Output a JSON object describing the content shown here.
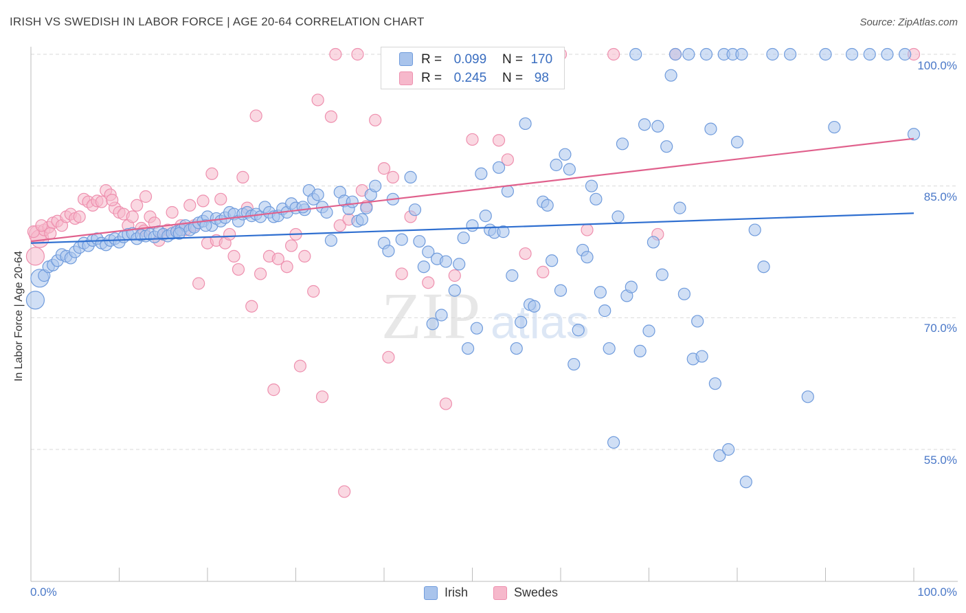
{
  "header": {
    "title": "IRISH VS SWEDISH IN LABOR FORCE | AGE 20-64 CORRELATION CHART",
    "source": "Source: ZipAtlas.com"
  },
  "legend": {
    "rows": [
      {
        "r_label": "R =",
        "r_value": "0.099",
        "n_label": "N =",
        "n_value": "170"
      },
      {
        "r_label": "R =",
        "r_value": "0.245",
        "n_label": "N =",
        "n_value": "98"
      }
    ],
    "bottom": [
      "Irish",
      "Swedes"
    ]
  },
  "colors": {
    "irish_fill": "#a9c4ec",
    "irish_stroke": "#6f9bdc",
    "irish_line": "#2f6fd0",
    "swedes_fill": "#f6b8cb",
    "swedes_stroke": "#ee8fae",
    "swedes_line": "#e0608c",
    "tick_text": "#4a78c8",
    "grid": "#d9d9d9"
  },
  "chart_data": {
    "type": "scatter",
    "title": "IRISH VS SWEDISH IN LABOR FORCE | AGE 20-64 CORRELATION CHART",
    "xlabel": "",
    "ylabel": "In Labor Force | Age 20-64",
    "xlim": [
      0,
      100
    ],
    "ylim": [
      40,
      101
    ],
    "y_ticks": [
      55,
      70,
      85,
      100
    ],
    "y_tick_labels": [
      "55.0%",
      "70.0%",
      "85.0%",
      "100.0%"
    ],
    "x_tick_labels": [
      "0.0%",
      "100.0%"
    ],
    "grid": true,
    "legend_position": "top-center",
    "watermark": "ZIPatlas",
    "series": [
      {
        "name": "Irish",
        "R": 0.099,
        "N": 170,
        "trend": [
          [
            0,
            78.5
          ],
          [
            100,
            81.9
          ]
        ],
        "points": [
          [
            0.5,
            72
          ],
          [
            1,
            74.5
          ],
          [
            1.5,
            74.8
          ],
          [
            2,
            75.8
          ],
          [
            2.5,
            76
          ],
          [
            3,
            76.5
          ],
          [
            3.5,
            77.2
          ],
          [
            4,
            77
          ],
          [
            4.5,
            76.8
          ],
          [
            5,
            77.5
          ],
          [
            5.5,
            78
          ],
          [
            6,
            78.5
          ],
          [
            6.5,
            78.2
          ],
          [
            7,
            78.8
          ],
          [
            7.5,
            79
          ],
          [
            8,
            78.5
          ],
          [
            8.5,
            78.3
          ],
          [
            9,
            78.8
          ],
          [
            9.5,
            79
          ],
          [
            10,
            78.6
          ],
          [
            10.5,
            79.2
          ],
          [
            11,
            79.5
          ],
          [
            11.5,
            79.6
          ],
          [
            12,
            79
          ],
          [
            12.5,
            79.4
          ],
          [
            13,
            79.3
          ],
          [
            13.5,
            79.5
          ],
          [
            14,
            79.2
          ],
          [
            14.5,
            79.8
          ],
          [
            15,
            79.5
          ],
          [
            15.5,
            79.3
          ],
          [
            16,
            79.6
          ],
          [
            16.5,
            79.8
          ],
          [
            17,
            80
          ],
          [
            17.5,
            80.5
          ],
          [
            18,
            80
          ],
          [
            18.5,
            80.3
          ],
          [
            19,
            80.8
          ],
          [
            19.5,
            81
          ],
          [
            20,
            81.5
          ],
          [
            20.5,
            80.5
          ],
          [
            21,
            81.3
          ],
          [
            21.5,
            81
          ],
          [
            22,
            81.4
          ],
          [
            22.5,
            82
          ],
          [
            23,
            81.8
          ],
          [
            23.5,
            81
          ],
          [
            24,
            81.8
          ],
          [
            24.5,
            82
          ],
          [
            25,
            81.6
          ],
          [
            25.5,
            81.8
          ],
          [
            26,
            81.5
          ],
          [
            26.5,
            82.6
          ],
          [
            27,
            82
          ],
          [
            27.5,
            81.5
          ],
          [
            28,
            81.6
          ],
          [
            28.5,
            82.4
          ],
          [
            29,
            82
          ],
          [
            29.5,
            83
          ],
          [
            30,
            82.5
          ],
          [
            31,
            82.3
          ],
          [
            31.5,
            84.5
          ],
          [
            32,
            83.5
          ],
          [
            32.5,
            84
          ],
          [
            33,
            82.6
          ],
          [
            33.5,
            82
          ],
          [
            34,
            78.8
          ],
          [
            35,
            84.3
          ],
          [
            35.5,
            83.3
          ],
          [
            36,
            82.4
          ],
          [
            37,
            81
          ],
          [
            37.5,
            81.2
          ],
          [
            38,
            82.5
          ],
          [
            38.5,
            84
          ],
          [
            39,
            85
          ],
          [
            40,
            78.5
          ],
          [
            40.5,
            77.6
          ],
          [
            41,
            83.5
          ],
          [
            42,
            78.9
          ],
          [
            43,
            86
          ],
          [
            43.5,
            82.3
          ],
          [
            44,
            78.7
          ],
          [
            44.5,
            75.8
          ],
          [
            45,
            77.5
          ],
          [
            45.5,
            69.3
          ],
          [
            46,
            76.7
          ],
          [
            46.5,
            70.3
          ],
          [
            47,
            76.4
          ],
          [
            48,
            73.1
          ],
          [
            48.5,
            76.1
          ],
          [
            49,
            79.1
          ],
          [
            49.5,
            66.5
          ],
          [
            50,
            80.5
          ],
          [
            50.5,
            68.8
          ],
          [
            51,
            86.4
          ],
          [
            51.5,
            81.6
          ],
          [
            52,
            80
          ],
          [
            52.5,
            79.7
          ],
          [
            53,
            87.1
          ],
          [
            53.5,
            79.8
          ],
          [
            54,
            84.4
          ],
          [
            54.5,
            74.8
          ],
          [
            55,
            66.5
          ],
          [
            55.5,
            69.5
          ],
          [
            56,
            92.1
          ],
          [
            56.5,
            71.5
          ],
          [
            57,
            71.3
          ],
          [
            58,
            83.2
          ],
          [
            58.5,
            82.8
          ],
          [
            59,
            76.5
          ],
          [
            59.5,
            87.4
          ],
          [
            60,
            73.1
          ],
          [
            60.5,
            88.6
          ],
          [
            61,
            86.9
          ],
          [
            61.5,
            64.7
          ],
          [
            62,
            68.6
          ],
          [
            62.5,
            77.7
          ],
          [
            63,
            76.9
          ],
          [
            63.5,
            85
          ],
          [
            64,
            83.5
          ],
          [
            64.5,
            72.9
          ],
          [
            65,
            70.8
          ],
          [
            65.5,
            66.5
          ],
          [
            66,
            55.8
          ],
          [
            66.5,
            81.5
          ],
          [
            67,
            89.8
          ],
          [
            67.5,
            72.5
          ],
          [
            68,
            73.5
          ],
          [
            68.5,
            100
          ],
          [
            69,
            66.2
          ],
          [
            69.5,
            92
          ],
          [
            70,
            68.5
          ],
          [
            70.5,
            78.6
          ],
          [
            71,
            91.8
          ],
          [
            71.5,
            74.9
          ],
          [
            72,
            89.5
          ],
          [
            72.5,
            97.6
          ],
          [
            73,
            100
          ],
          [
            73.5,
            82.5
          ],
          [
            74,
            72.7
          ],
          [
            74.5,
            100
          ],
          [
            75,
            65.3
          ],
          [
            75.5,
            69.6
          ],
          [
            76,
            65.6
          ],
          [
            76.5,
            100
          ],
          [
            77,
            91.5
          ],
          [
            77.5,
            62.5
          ],
          [
            78,
            54.3
          ],
          [
            78.5,
            100
          ],
          [
            79,
            55
          ],
          [
            79.5,
            100
          ],
          [
            80,
            90
          ],
          [
            80.5,
            100
          ],
          [
            81,
            51.3
          ],
          [
            82,
            80
          ],
          [
            83,
            75.8
          ],
          [
            84,
            100
          ],
          [
            86,
            100
          ],
          [
            88,
            61
          ],
          [
            90,
            100
          ],
          [
            91,
            91.7
          ],
          [
            93,
            100
          ],
          [
            95,
            100
          ],
          [
            97,
            100
          ],
          [
            99,
            100
          ],
          [
            100,
            90.9
          ],
          [
            30.8,
            82.6
          ],
          [
            36.4,
            83.2
          ],
          [
            16.8,
            79.6
          ],
          [
            19.8,
            80.5
          ]
        ]
      },
      {
        "name": "Swedes",
        "R": 0.245,
        "N": 98,
        "trend": [
          [
            0,
            78.7
          ],
          [
            100,
            90.4
          ]
        ],
        "points": [
          [
            0.5,
            77
          ],
          [
            0.8,
            79.5
          ],
          [
            1,
            79
          ],
          [
            1.5,
            80
          ],
          [
            2,
            80.3
          ],
          [
            2.5,
            80.8
          ],
          [
            3,
            81
          ],
          [
            3.5,
            80.5
          ],
          [
            4,
            81.5
          ],
          [
            4.5,
            81.8
          ],
          [
            5,
            81.3
          ],
          [
            5.5,
            81.5
          ],
          [
            6,
            83.5
          ],
          [
            6.5,
            83.2
          ],
          [
            7,
            82.8
          ],
          [
            7.5,
            83.3
          ],
          [
            8,
            83.2
          ],
          [
            8.5,
            84.5
          ],
          [
            9,
            84
          ],
          [
            9.5,
            82.5
          ],
          [
            10,
            82
          ],
          [
            10.5,
            81.8
          ],
          [
            11,
            80.5
          ],
          [
            11.5,
            81.5
          ],
          [
            12,
            82.8
          ],
          [
            12.5,
            80.2
          ],
          [
            13,
            83.8
          ],
          [
            13.5,
            81.5
          ],
          [
            14,
            80.8
          ],
          [
            14.5,
            78.8
          ],
          [
            15,
            79.5
          ],
          [
            15.5,
            80
          ],
          [
            16,
            82
          ],
          [
            16.5,
            79.8
          ],
          [
            17,
            80.5
          ],
          [
            17.5,
            80
          ],
          [
            18,
            82.8
          ],
          [
            18.5,
            80.5
          ],
          [
            19,
            73.9
          ],
          [
            19.5,
            83.3
          ],
          [
            20,
            78.5
          ],
          [
            20.5,
            86.4
          ],
          [
            21,
            78.8
          ],
          [
            21.5,
            83.5
          ],
          [
            22,
            78.5
          ],
          [
            22.5,
            79.5
          ],
          [
            23,
            77
          ],
          [
            23.5,
            75.5
          ],
          [
            24,
            86
          ],
          [
            24.5,
            82.5
          ],
          [
            25,
            71.3
          ],
          [
            25.5,
            93
          ],
          [
            26,
            75
          ],
          [
            27,
            77
          ],
          [
            27.5,
            61.8
          ],
          [
            28,
            76.7
          ],
          [
            29,
            75.8
          ],
          [
            29.5,
            78.2
          ],
          [
            30,
            79.5
          ],
          [
            30.5,
            64.5
          ],
          [
            31,
            77
          ],
          [
            32,
            73
          ],
          [
            32.5,
            94.8
          ],
          [
            33,
            61
          ],
          [
            34,
            92.9
          ],
          [
            34.5,
            100
          ],
          [
            35,
            80.5
          ],
          [
            35.5,
            50.2
          ],
          [
            36,
            81.2
          ],
          [
            37,
            100
          ],
          [
            37.5,
            84.5
          ],
          [
            38,
            82.7
          ],
          [
            39,
            92.5
          ],
          [
            40,
            87
          ],
          [
            40.5,
            65.5
          ],
          [
            41,
            86
          ],
          [
            42,
            75
          ],
          [
            43,
            81.5
          ],
          [
            45,
            74
          ],
          [
            47,
            60.2
          ],
          [
            48,
            74.8
          ],
          [
            50,
            90.3
          ],
          [
            51,
            100
          ],
          [
            53,
            90.2
          ],
          [
            54,
            88
          ],
          [
            56,
            77.3
          ],
          [
            58,
            75.2
          ],
          [
            60,
            100
          ],
          [
            63,
            80
          ],
          [
            66,
            100
          ],
          [
            71,
            79.5
          ],
          [
            73,
            100
          ],
          [
            100,
            100
          ],
          [
            0.3,
            79.8
          ],
          [
            2.2,
            79.6
          ],
          [
            1.2,
            80.5
          ],
          [
            9.2,
            83.4
          ],
          [
            12.8,
            79.9
          ]
        ]
      }
    ]
  }
}
